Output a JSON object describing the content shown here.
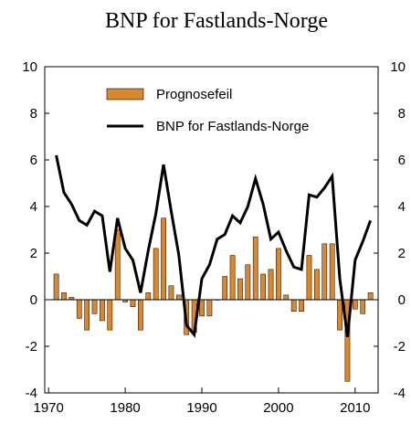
{
  "chart_data": {
    "type": "bar+line",
    "title": "BNP for Fastlands-Norge",
    "xlabel": "",
    "ylabel": "",
    "xlim": [
      1969.5,
      2013
    ],
    "ylim": [
      -4,
      10
    ],
    "x_ticks": [
      1970,
      1980,
      1990,
      2000,
      2010
    ],
    "y_ticks": [
      -4,
      -2,
      0,
      2,
      4,
      6,
      8,
      10
    ],
    "y_ticks_right": [
      -4,
      -2,
      0,
      2,
      4,
      6,
      8,
      10
    ],
    "grid": false,
    "legend_position": "top",
    "series": [
      {
        "name": "Prognosefeil",
        "type": "bar",
        "color": "#d8882e",
        "x": [
          1971,
          1972,
          1973,
          1974,
          1975,
          1976,
          1977,
          1978,
          1979,
          1980,
          1981,
          1982,
          1983,
          1984,
          1985,
          1986,
          1987,
          1988,
          1989,
          1990,
          1991,
          1992,
          1993,
          1994,
          1995,
          1996,
          1997,
          1998,
          1999,
          2000,
          2001,
          2002,
          2003,
          2004,
          2005,
          2006,
          2007,
          2008,
          2009,
          2010,
          2011,
          2012
        ],
        "values": [
          1.1,
          0.3,
          0.1,
          -0.8,
          -1.3,
          -0.6,
          -0.9,
          -1.3,
          3.0,
          -0.1,
          -0.3,
          -1.3,
          0.3,
          2.2,
          3.5,
          0.6,
          0.2,
          -1.5,
          -1.4,
          -0.7,
          -0.7,
          0.0,
          1.0,
          1.9,
          0.9,
          1.5,
          2.7,
          1.1,
          1.3,
          2.2,
          0.2,
          -0.5,
          -0.5,
          1.9,
          1.3,
          2.4,
          2.4,
          -1.3,
          -3.5,
          -0.4,
          -0.6,
          0.3
        ]
      },
      {
        "name": "BNP for Fastlands-Norge",
        "type": "line",
        "color": "#000000",
        "x": [
          1971,
          1972,
          1973,
          1974,
          1975,
          1976,
          1977,
          1978,
          1979,
          1980,
          1981,
          1982,
          1983,
          1984,
          1985,
          1986,
          1987,
          1988,
          1989,
          1990,
          1991,
          1992,
          1993,
          1994,
          1995,
          1996,
          1997,
          1998,
          1999,
          2000,
          2001,
          2002,
          2003,
          2004,
          2005,
          2006,
          2007,
          2008,
          2009,
          2010,
          2011,
          2012
        ],
        "values": [
          6.2,
          4.6,
          4.1,
          3.4,
          3.2,
          3.8,
          3.6,
          1.2,
          3.5,
          2.2,
          1.7,
          0.3,
          2.1,
          3.7,
          5.8,
          3.8,
          1.9,
          -1.1,
          -1.5,
          0.9,
          1.5,
          2.6,
          2.8,
          3.6,
          3.3,
          4.0,
          5.2,
          4.1,
          2.6,
          2.9,
          2.1,
          1.4,
          1.3,
          4.5,
          4.4,
          4.8,
          5.3,
          0.9,
          -1.6,
          1.7,
          2.5,
          3.4
        ]
      }
    ]
  }
}
